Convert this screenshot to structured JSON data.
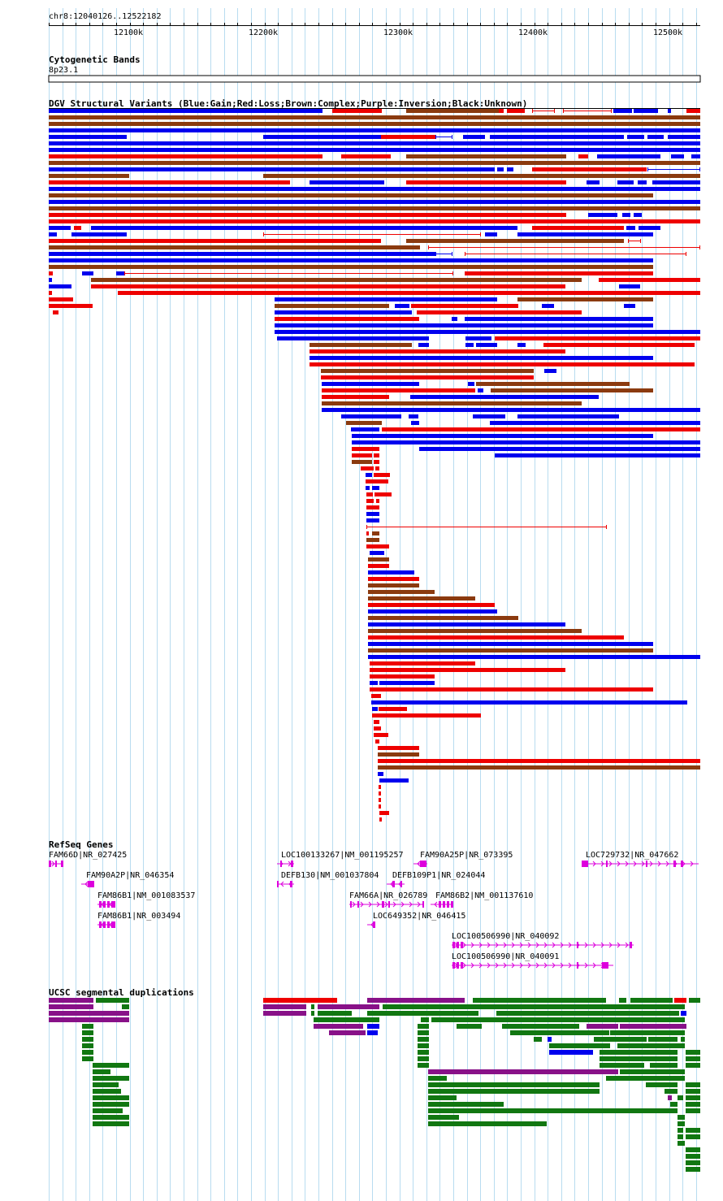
{
  "ruler": {
    "position": "chr8:12040126..12522182",
    "ticks": [
      {
        "label": "12100k",
        "value": 12100000
      },
      {
        "label": "12200k",
        "value": 12200000
      },
      {
        "label": "12300k",
        "value": 12300000
      },
      {
        "label": "12400k",
        "value": 12400000
      },
      {
        "label": "12500k",
        "value": 12500000
      }
    ]
  },
  "cytoband": {
    "title": "Cytogenetic Bands",
    "band": "8p23.1"
  },
  "dgv": {
    "title": "DGV Structural Variants (Blue:Gain;Red:Loss;Brown:Complex;Purple:Inversion;Black:Unknown)",
    "colors": {
      "gain": "#0000ee",
      "loss": "#ee0000",
      "complex": "#8b3a0f",
      "inversion": "#880088",
      "unknown": "#000000"
    }
  },
  "refseq": {
    "title": "RefSeq Genes",
    "color": "#dd00dd",
    "genes": [
      {
        "label": "FAM66D|NR_027425"
      },
      {
        "label": "FAM90A2P|NR_046354"
      },
      {
        "label": "FAM86B1|NM_001083537"
      },
      {
        "label": "FAM86B1|NR_003494"
      },
      {
        "label": "LOC100133267|NM_001195257"
      },
      {
        "label": "FAM90A25P|NR_073395"
      },
      {
        "label": "LOC729732|NR_047662"
      },
      {
        "label": "DEFB130|NM_001037804"
      },
      {
        "label": "DEFB109P1|NR_024044"
      },
      {
        "label": "FAM66A|NR_026789"
      },
      {
        "label": "FAM86B2|NM_001137610"
      },
      {
        "label": "LOC649352|NR_046415"
      },
      {
        "label": "LOC100506990|NR_040092"
      },
      {
        "label": "LOC100506990|NR_040091"
      }
    ]
  },
  "segdups": {
    "title": "UCSC segmental duplications",
    "colors": {
      "green": "#117711",
      "purple": "#881188",
      "red": "#ee0000",
      "blue": "#0000ee"
    }
  }
}
